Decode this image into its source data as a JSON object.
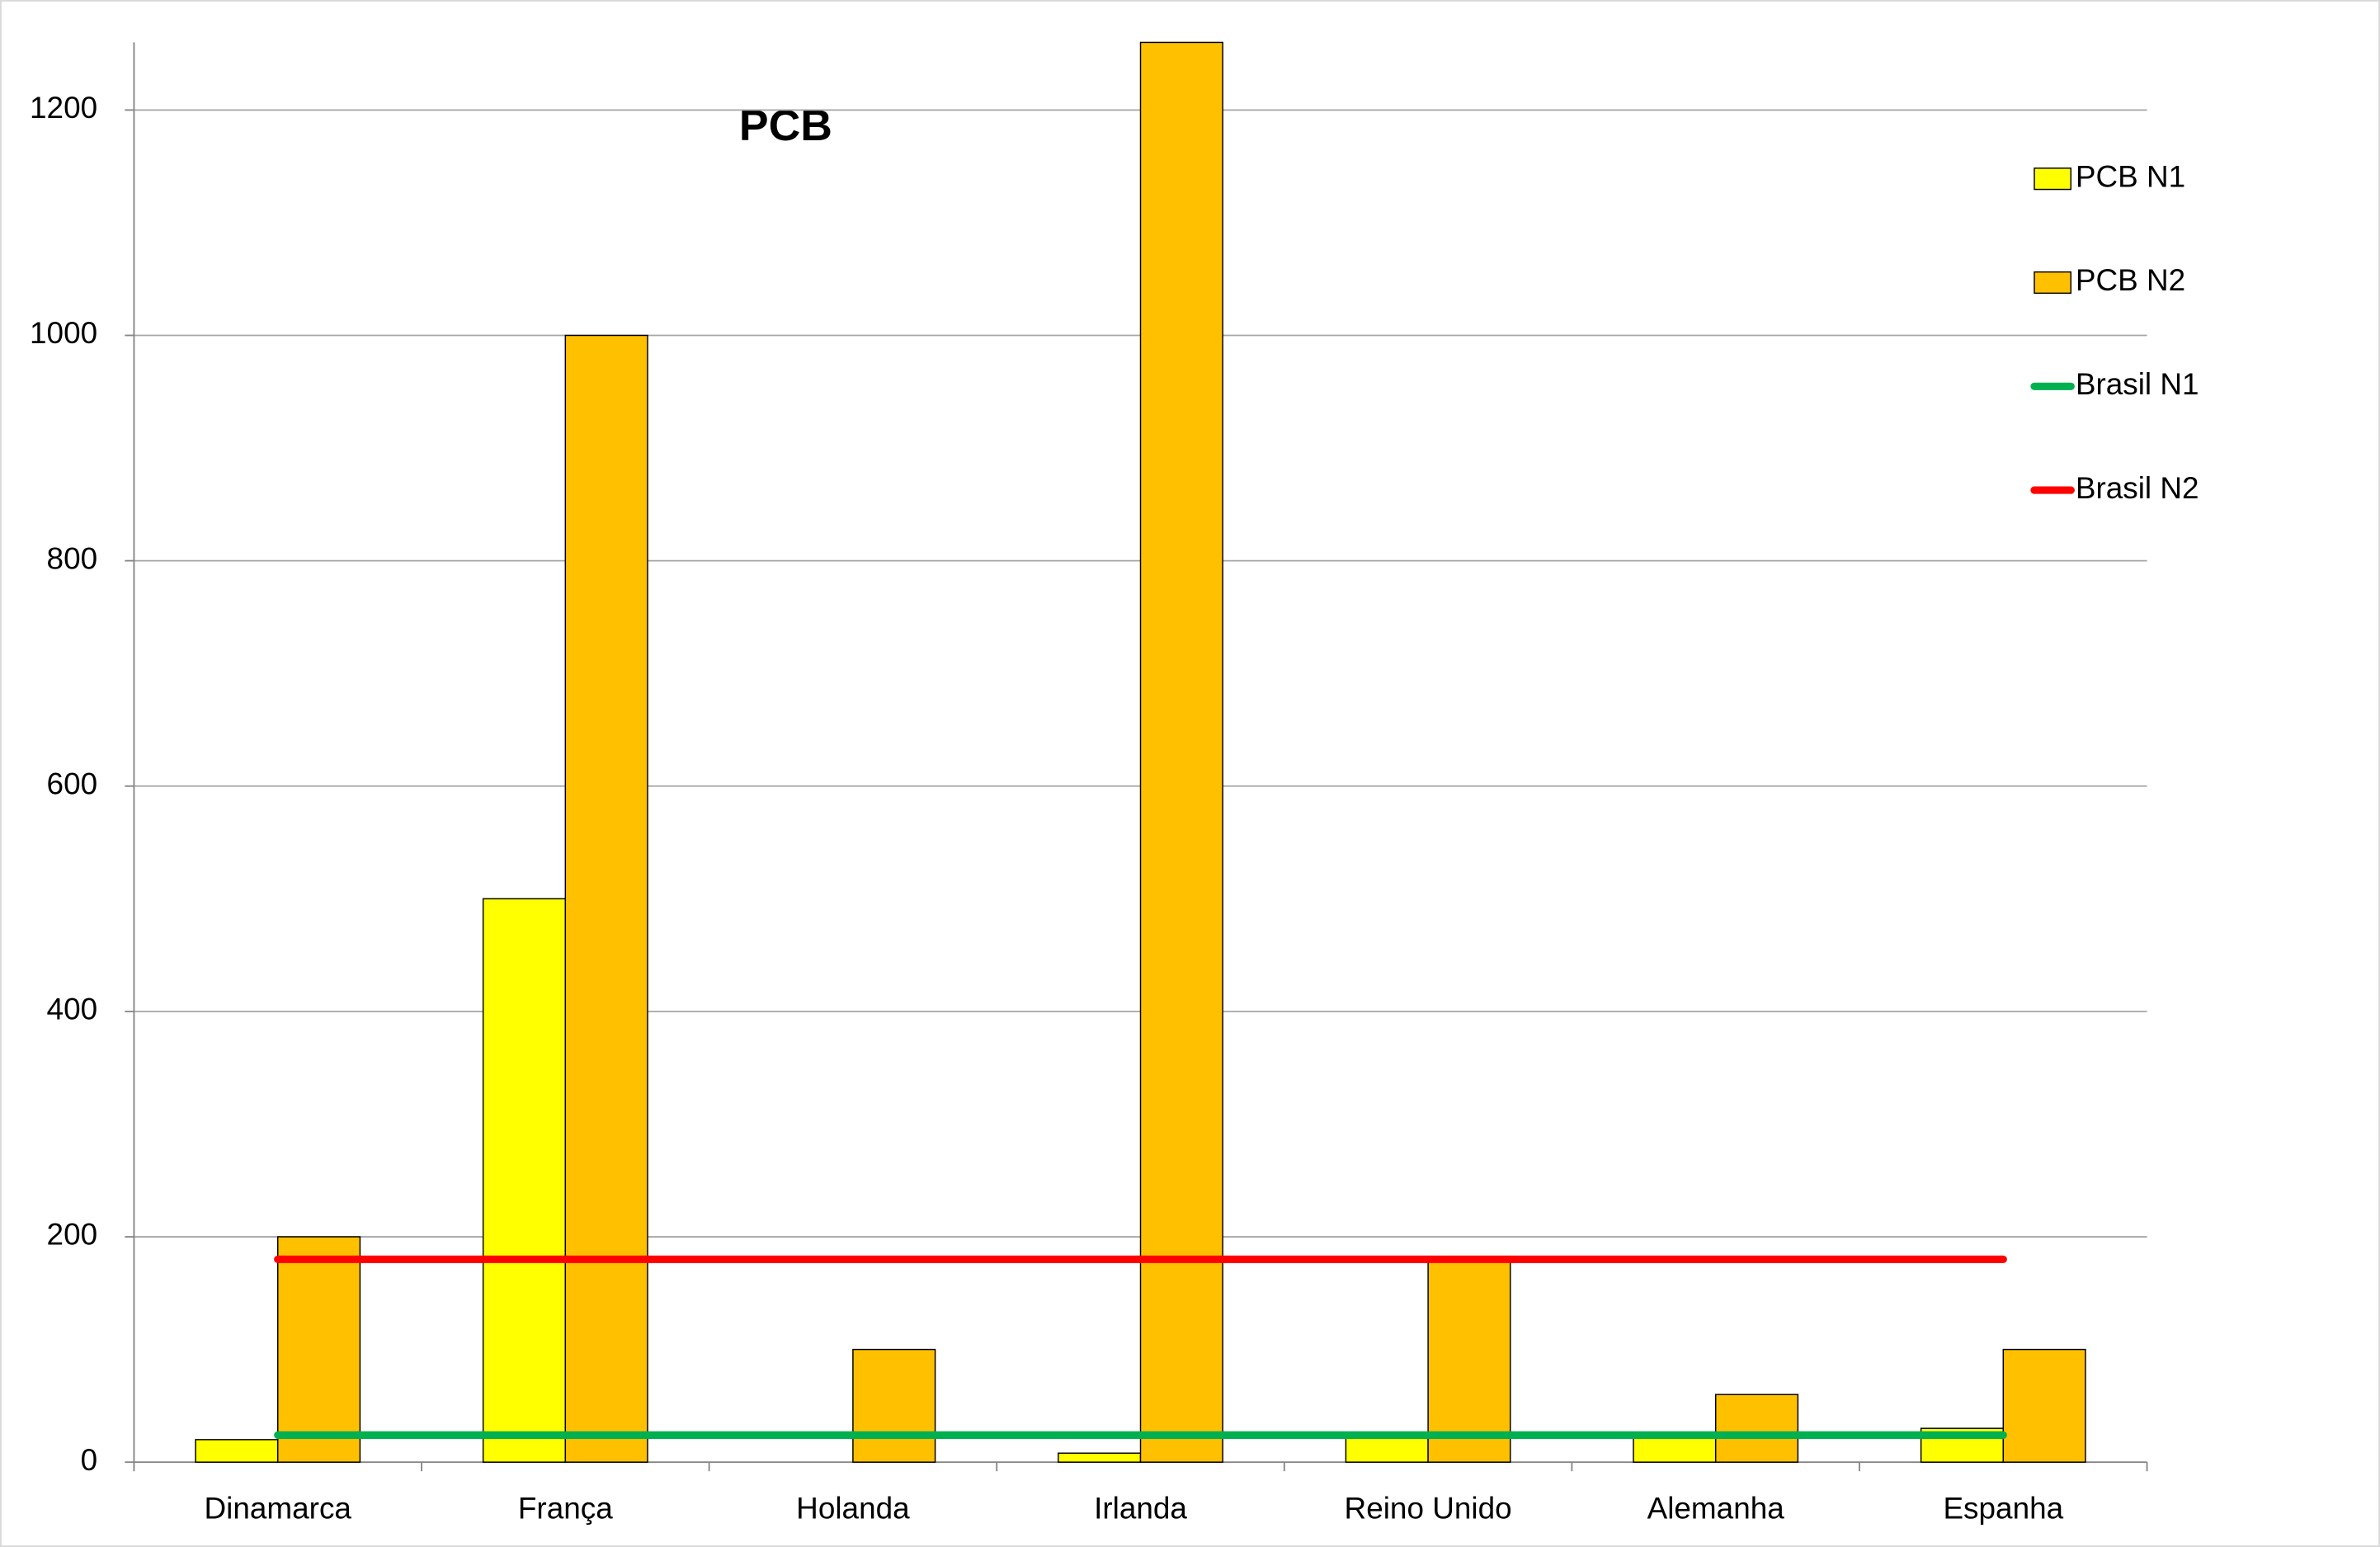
{
  "chart_data": {
    "type": "bar",
    "title": "PCB",
    "categories": [
      "Dinamarca",
      "França",
      "Holanda",
      "Irlanda",
      "Reino Unido",
      "Alemanha",
      "Espanha"
    ],
    "series": [
      {
        "name": "PCB N1",
        "color": "#ffff00",
        "type": "bar",
        "values": [
          20,
          500,
          0,
          8,
          24,
          24,
          30
        ]
      },
      {
        "name": "PCB N2",
        "color": "#ffc000",
        "type": "bar",
        "values": [
          200,
          1000,
          100,
          1260,
          180,
          60,
          100
        ]
      },
      {
        "name": "Brasil N1",
        "color": "#00b050",
        "type": "line",
        "values": [
          24,
          24,
          24,
          24,
          24,
          24,
          24
        ]
      },
      {
        "name": "Brasil N2",
        "color": "#ff0000",
        "type": "line",
        "values": [
          180,
          180,
          180,
          180,
          180,
          180,
          180
        ]
      }
    ],
    "ylim": [
      0,
      1260
    ],
    "yticks": [
      0,
      200,
      400,
      600,
      800,
      1000,
      1200
    ],
    "grid": true,
    "legend": "right"
  }
}
